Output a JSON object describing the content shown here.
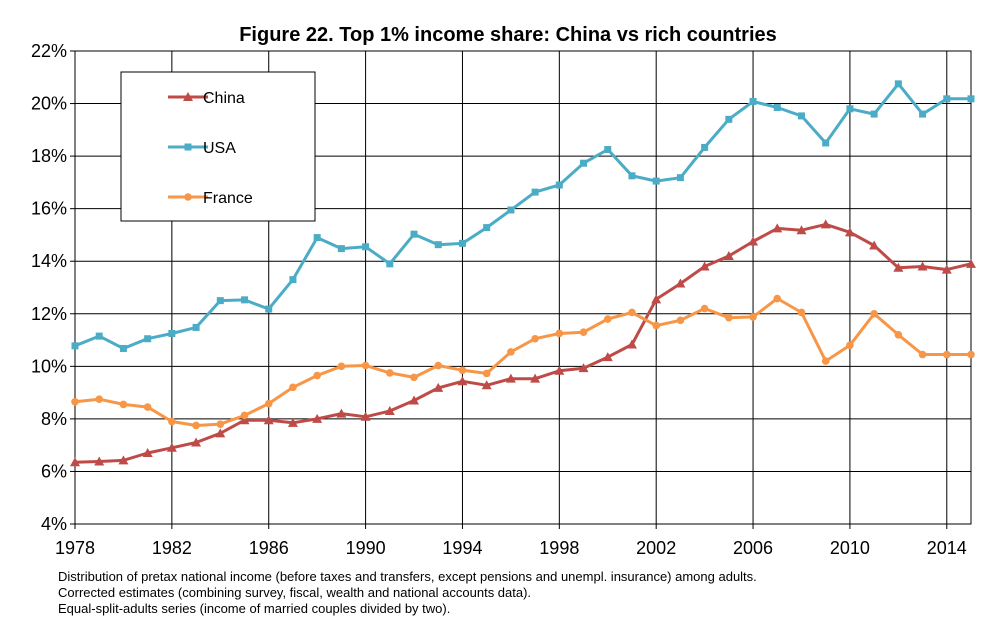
{
  "chart_data": {
    "type": "line",
    "title": "Figure 22. Top 1% income share: China vs rich countries",
    "xlabel": "",
    "ylabel": "",
    "x": [
      1978,
      1979,
      1980,
      1981,
      1982,
      1983,
      1984,
      1985,
      1986,
      1987,
      1988,
      1989,
      1990,
      1991,
      1992,
      1993,
      1994,
      1995,
      1996,
      1997,
      1998,
      1999,
      2000,
      2001,
      2002,
      2003,
      2004,
      2005,
      2006,
      2007,
      2008,
      2009,
      2010,
      2011,
      2012,
      2013,
      2014,
      2015
    ],
    "xlim": [
      1978,
      2015
    ],
    "ylim": [
      0.04,
      0.22
    ],
    "x_ticks": [
      1978,
      1982,
      1986,
      1990,
      1994,
      1998,
      2002,
      2006,
      2010,
      2014
    ],
    "x_tick_labels": [
      "1978",
      "1982",
      "1986",
      "1990",
      "1994",
      "1998",
      "2002",
      "2006",
      "2010",
      "2014"
    ],
    "y_ticks": [
      0.04,
      0.06,
      0.08,
      0.1,
      0.12,
      0.14,
      0.16,
      0.18,
      0.2,
      0.22
    ],
    "y_tick_labels": [
      "4%",
      "6%",
      "8%",
      "10%",
      "12%",
      "14%",
      "16%",
      "18%",
      "20%",
      "22%"
    ],
    "grid": true,
    "legend_position": "top-left",
    "series": [
      {
        "name": "China",
        "color": "#be4b48",
        "marker": "triangle",
        "values": [
          0.0635,
          0.0638,
          0.0642,
          0.067,
          0.069,
          0.071,
          0.0745,
          0.0795,
          0.0795,
          0.0785,
          0.08,
          0.082,
          0.0808,
          0.083,
          0.087,
          0.0918,
          0.0943,
          0.0928,
          0.0953,
          0.0953,
          0.0983,
          0.0993,
          0.1035,
          0.1083,
          0.1255,
          0.1315,
          0.138,
          0.142,
          0.1475,
          0.1525,
          0.1518,
          0.154,
          0.151,
          0.146,
          0.1375,
          0.138,
          0.1368,
          0.139
        ]
      },
      {
        "name": "USA",
        "color": "#4bacc6",
        "marker": "square",
        "values": [
          0.1078,
          0.1115,
          0.1068,
          0.1105,
          0.1125,
          0.1148,
          0.125,
          0.1253,
          0.1218,
          0.133,
          0.149,
          0.1448,
          0.1455,
          0.139,
          0.1503,
          0.1463,
          0.1468,
          0.1528,
          0.1595,
          0.1663,
          0.169,
          0.1773,
          0.1825,
          0.1725,
          0.1705,
          0.1718,
          0.1833,
          0.194,
          0.2008,
          0.1985,
          0.1953,
          0.185,
          0.198,
          0.196,
          0.2075,
          0.196,
          0.2018,
          0.2018
        ]
      },
      {
        "name": "France",
        "color": "#f79646",
        "marker": "circle",
        "values": [
          0.0865,
          0.0875,
          0.0855,
          0.0845,
          0.079,
          0.0775,
          0.078,
          0.0813,
          0.0858,
          0.092,
          0.0965,
          0.1,
          0.1003,
          0.0975,
          0.0958,
          0.1003,
          0.0985,
          0.0973,
          0.1055,
          0.1105,
          0.1125,
          0.113,
          0.118,
          0.1205,
          0.1155,
          0.1175,
          0.122,
          0.1185,
          0.1188,
          0.1258,
          0.1205,
          0.102,
          0.108,
          0.12,
          0.112,
          0.1045,
          0.1045,
          0.1045
        ]
      }
    ]
  },
  "footnotes": [
    "Distribution of pretax national income (before taxes and transfers, except pensions and unempl. insurance) among adults.",
    "Corrected estimates (combining survey, fiscal, wealth and national accounts data).",
    "Equal-split-adults series (income of married couples divided by two)."
  ]
}
